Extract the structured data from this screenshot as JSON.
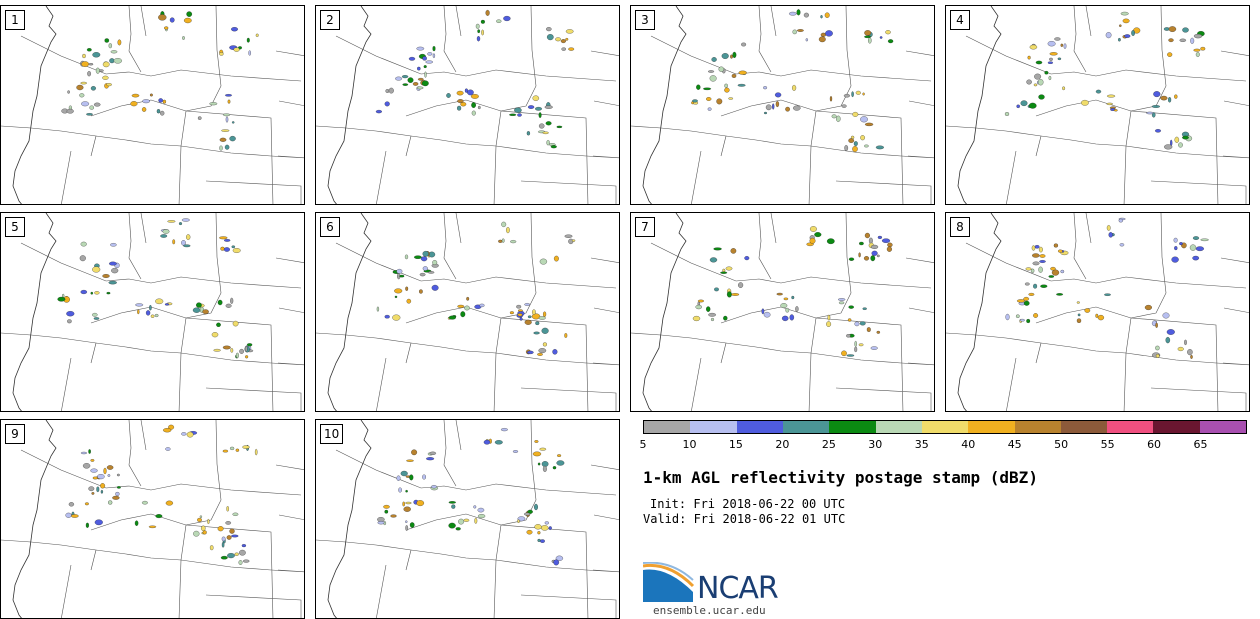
{
  "panels": [
    {
      "label": "1"
    },
    {
      "label": "2"
    },
    {
      "label": "3"
    },
    {
      "label": "4"
    },
    {
      "label": "5"
    },
    {
      "label": "6"
    },
    {
      "label": "7"
    },
    {
      "label": "8"
    },
    {
      "label": "9"
    },
    {
      "label": "10"
    }
  ],
  "colorbar": {
    "ticks": [
      "5",
      "10",
      "15",
      "20",
      "25",
      "30",
      "35",
      "40",
      "45",
      "50",
      "55",
      "60",
      "65"
    ],
    "colors": [
      "#a6a6a6",
      "#b7bff0",
      "#4f5cde",
      "#4b9596",
      "#0b8a12",
      "#b9d8b5",
      "#f0dc6a",
      "#f0b020",
      "#b8822e",
      "#8c5a3a",
      "#f05080",
      "#6a1630",
      "#a850b0"
    ],
    "units": "dBZ"
  },
  "title": "1-km AGL reflectivity postage stamp (dBZ)",
  "init": "Init: Fri 2018-06-22 00 UTC",
  "valid": "Valid: Fri 2018-06-22 01 UTC",
  "logo_text": "NCAR",
  "url": "ensemble.ucar.edu"
}
